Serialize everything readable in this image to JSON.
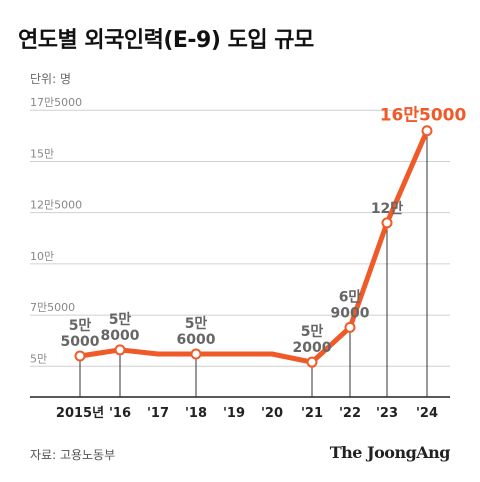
{
  "title": "연도별 외국인력(E-9) 도입 규모",
  "unit_label": "단위: 명",
  "source": "자료: 고용노동부",
  "brand": "The JoongAng",
  "colors": {
    "line": "#f05a28",
    "highlight_label": "#f05a28",
    "gridline": "#d0d0d0",
    "axis_label": "#888888",
    "data_label": "#666666",
    "drop_line": "#333333"
  },
  "chart_data": {
    "type": "line",
    "title": "연도별 외국인력(E-9) 도입 규모",
    "xlabel": "",
    "ylabel": "단위: 명",
    "categories": [
      "2015년",
      "'16",
      "'17",
      "'18",
      "'19",
      "'20",
      "'21",
      "'22",
      "'23",
      "'24"
    ],
    "values": [
      55000,
      58000,
      56000,
      56000,
      56000,
      56000,
      52000,
      69000,
      120000,
      165000
    ],
    "ylim": [
      35000,
      180000
    ],
    "yticks": [
      {
        "value": 50000,
        "label": "5만"
      },
      {
        "value": 75000,
        "label": "7만5000"
      },
      {
        "value": 100000,
        "label": "10만"
      },
      {
        "value": 125000,
        "label": "12만5000"
      },
      {
        "value": 150000,
        "label": "15만"
      },
      {
        "value": 175000,
        "label": "17만5000"
      }
    ],
    "grid": true,
    "data_labels": [
      {
        "index": 0,
        "lines": [
          "5만",
          "5000"
        ],
        "highlight": false
      },
      {
        "index": 1,
        "lines": [
          "5만",
          "8000"
        ],
        "highlight": false
      },
      {
        "index": 3,
        "lines": [
          "5만",
          "6000"
        ],
        "highlight": false
      },
      {
        "index": 6,
        "lines": [
          "5만",
          "2000"
        ],
        "highlight": false
      },
      {
        "index": 7,
        "lines": [
          "6만",
          "9000"
        ],
        "highlight": false
      },
      {
        "index": 8,
        "lines": [
          "12만"
        ],
        "highlight": false
      },
      {
        "index": 9,
        "lines": [
          "16만5000"
        ],
        "highlight": true
      }
    ],
    "markers": [
      0,
      1,
      3,
      6,
      7,
      8,
      9
    ]
  }
}
